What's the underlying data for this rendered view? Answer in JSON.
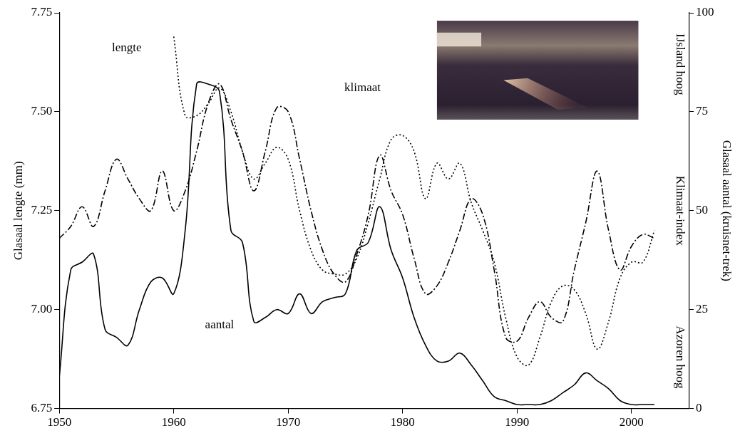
{
  "chart_data": {
    "type": "line",
    "ylabel": "Glasaal lengte (mm)",
    "y2label": "Glasaal aantal (kruisnet-trek)",
    "klimaat_axis_labels": {
      "high": "IJsland hoog",
      "title": "Klimaat-index",
      "low": "Azoren hoog"
    },
    "annotations": [
      {
        "text": "lengte",
        "x": 1955.9,
        "y": 7.66
      },
      {
        "text": "klimaat",
        "x": 1976.5,
        "y": 7.56
      },
      {
        "text": "aantal",
        "x": 1964,
        "y": 6.96
      }
    ],
    "x": [
      1950,
      1951,
      1952,
      1953,
      1954,
      1955,
      1956,
      1957,
      1958,
      1959,
      1960,
      1961,
      1962,
      1963,
      1964,
      1965,
      1966,
      1967,
      1968,
      1969,
      1970,
      1971,
      1972,
      1973,
      1974,
      1975,
      1976,
      1977,
      1978,
      1979,
      1980,
      1981,
      1982,
      1983,
      1984,
      1985,
      1986,
      1987,
      1988,
      1989,
      1990,
      1991,
      1992,
      1993,
      1994,
      1995,
      1996,
      1997,
      1998,
      1999,
      2000,
      2001,
      2002
    ],
    "xlim": [
      1950,
      2005
    ],
    "xticks": [
      1950,
      1960,
      1970,
      1980,
      1990,
      2000
    ],
    "ylim": [
      6.75,
      7.75
    ],
    "yticks": [
      6.75,
      {
        "value": 7,
        "label": "7.00"
      },
      7.25,
      {
        "value": 7.5,
        "label": "7.50"
      },
      7.75
    ],
    "y2lim": [
      0,
      100
    ],
    "y2ticks": [
      0,
      25,
      50,
      75,
      100
    ],
    "grid": false,
    "series": [
      {
        "name": "lengte",
        "color": "#000000",
        "line_style": "dotted",
        "marker": "none",
        "values": [
          null,
          null,
          null,
          null,
          null,
          null,
          null,
          null,
          null,
          null,
          7.69,
          7.49,
          7.49,
          7.52,
          7.56,
          7.5,
          7.4,
          7.33,
          7.37,
          7.41,
          7.38,
          7.25,
          7.15,
          7.1,
          7.09,
          7.09,
          7.13,
          7.22,
          7.33,
          7.43,
          7.44,
          7.4,
          7.28,
          7.37,
          7.33,
          7.37,
          7.27,
          7.2,
          7.12,
          6.98,
          6.88,
          6.86,
          6.93,
          7.02,
          7.06,
          7.05,
          6.99,
          6.9,
          6.97,
          7.08,
          7.12,
          7.12,
          7.2
        ]
      },
      {
        "name": "klimaat",
        "color": "#000000",
        "line_style": "dashdot",
        "marker": "none",
        "axis": "y2",
        "values": [
          43,
          46,
          51,
          46,
          55,
          63,
          58,
          53,
          50,
          60,
          50,
          55,
          65,
          77,
          82,
          73,
          65,
          55,
          65,
          76,
          75,
          63,
          50,
          40,
          34,
          32,
          39,
          49,
          64,
          55,
          49,
          38,
          29,
          31,
          37,
          45,
          53,
          49,
          35,
          18,
          17,
          23,
          27,
          23,
          22,
          35,
          47,
          60,
          45,
          35,
          41,
          44,
          43
        ]
      },
      {
        "name": "aantal",
        "color": "#000000",
        "line_style": "solid",
        "marker": "none",
        "axis": "y2",
        "values": [
          8,
          35,
          37,
          39,
          20,
          18,
          16,
          25,
          32,
          33,
          29,
          45,
          82,
          82,
          80,
          45,
          42,
          22,
          23,
          25,
          24,
          29,
          24,
          27,
          28,
          29,
          40,
          42,
          51,
          40,
          33,
          23,
          16,
          12,
          12,
          14,
          11,
          7,
          3,
          2,
          1,
          1,
          1,
          2,
          4,
          6,
          9,
          7,
          5,
          2,
          1,
          1,
          1
        ]
      }
    ]
  }
}
